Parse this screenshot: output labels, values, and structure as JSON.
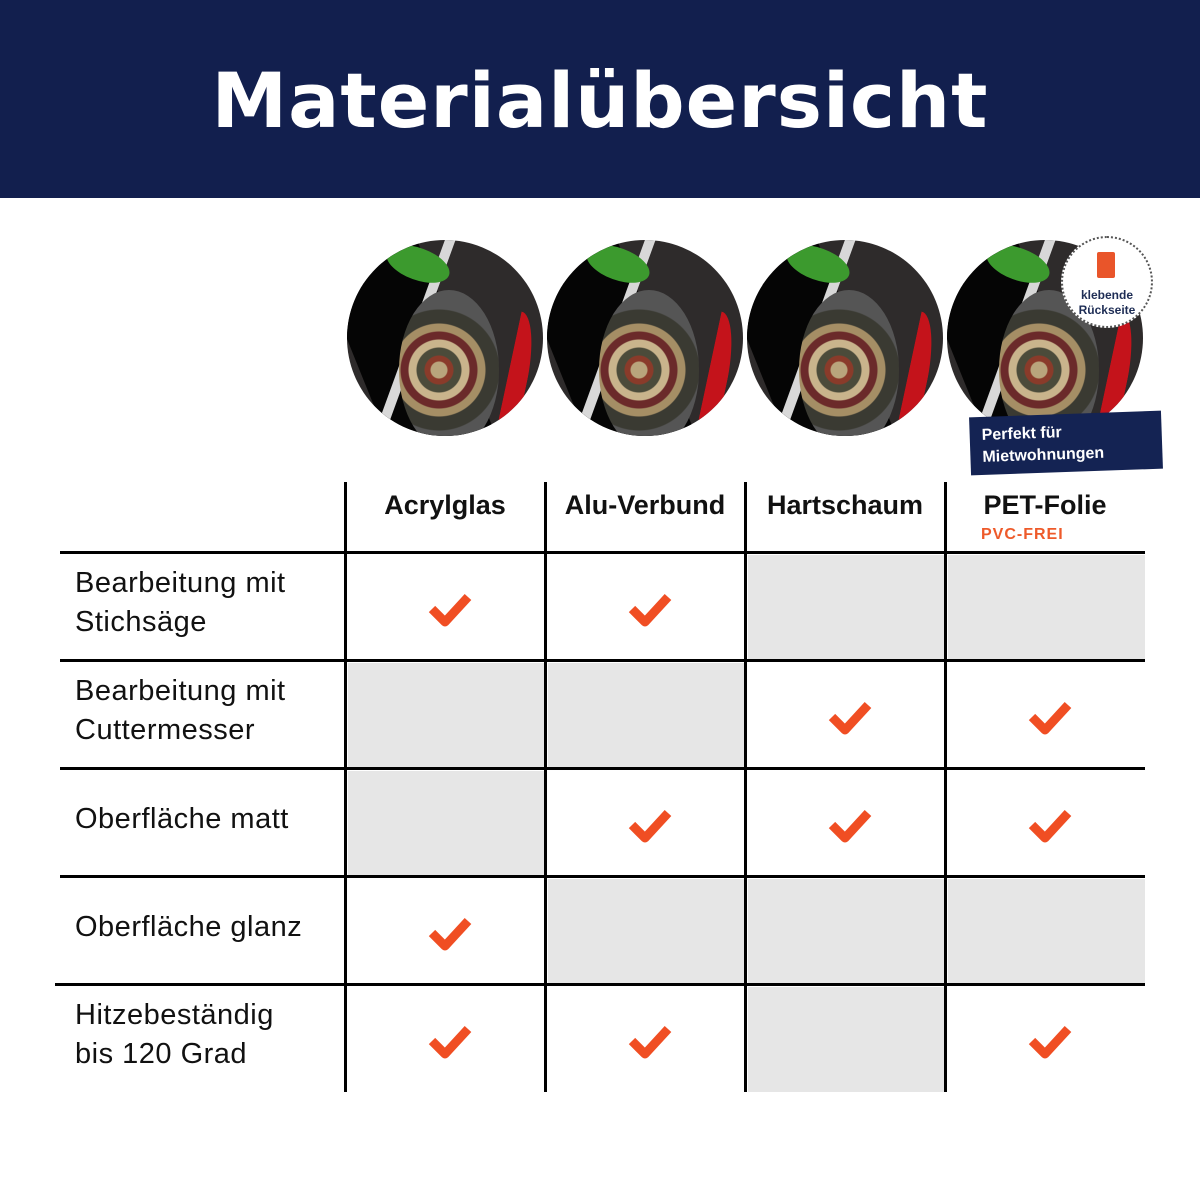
{
  "title": "Materialübersicht",
  "badge": {
    "line1": "klebende",
    "line2": "Rückseite",
    "icon": "adhesive-backing-icon"
  },
  "ribbon": {
    "line1": "Perfekt für",
    "line2": "Mietwohnungen"
  },
  "columns": [
    {
      "label": "Acrylglas"
    },
    {
      "label": "Alu-Verbund"
    },
    {
      "label": "Hartschaum"
    },
    {
      "label": "PET-Folie",
      "sub": "PVC-FREI"
    }
  ],
  "rows": [
    {
      "label1": "Bearbeitung mit",
      "label2": "Stichsäge",
      "checks": [
        true,
        true,
        false,
        false
      ]
    },
    {
      "label1": "Bearbeitung mit",
      "label2": "Cuttermesser",
      "checks": [
        false,
        false,
        true,
        true
      ]
    },
    {
      "label1": "Oberfläche matt",
      "label2": "",
      "checks": [
        false,
        true,
        true,
        true
      ]
    },
    {
      "label1": "Oberfläche glanz",
      "label2": "",
      "checks": [
        true,
        false,
        false,
        false
      ]
    },
    {
      "label1": "Hitzebeständig",
      "label2": "bis 120 Grad",
      "checks": [
        true,
        true,
        false,
        true
      ]
    }
  ],
  "colors": {
    "header": "#121f4e",
    "check": "#f04e23",
    "unavailable_cell": "#e6e6e6",
    "accent": "#ee5a2a"
  }
}
